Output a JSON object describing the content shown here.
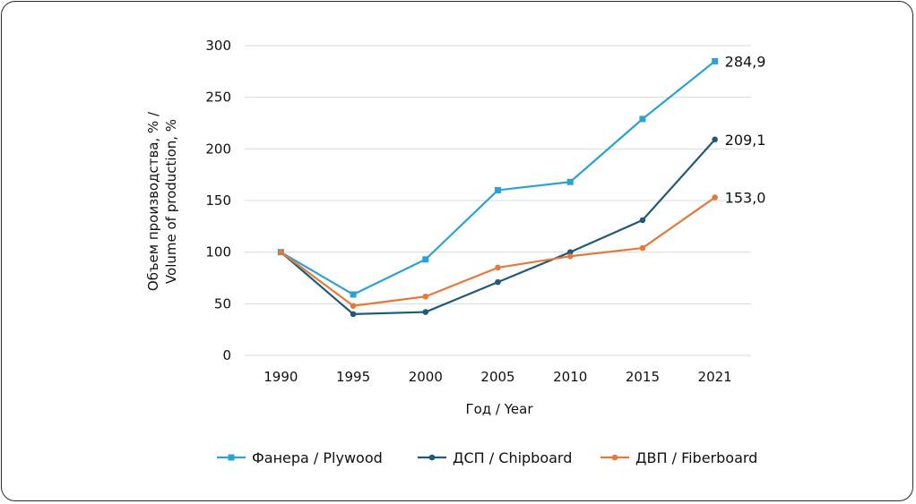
{
  "chart_data": {
    "type": "line",
    "categories": [
      "1990",
      "1995",
      "2000",
      "2005",
      "2010",
      "2015",
      "2021"
    ],
    "xlabel": "Год / Year",
    "ylabel_line1": "Объем производства, % /",
    "ylabel_line2": "Volume of production, %",
    "ylim": [
      0,
      300
    ],
    "yticks": [
      "0",
      "50",
      "100",
      "150",
      "200",
      "250",
      "300"
    ],
    "grid": true,
    "legend_position": "bottom",
    "series": [
      {
        "name": "Фанера / Plywood",
        "color": "#2aa3d4",
        "marker": "square",
        "values": [
          100,
          59,
          93,
          160,
          168,
          229,
          284.9
        ],
        "end_label": "284,9"
      },
      {
        "name": "ДСП / Chipboard",
        "color": "#1f5a78",
        "marker": "circle",
        "values": [
          100,
          40,
          42,
          71,
          100,
          131,
          209.1
        ],
        "end_label": "209,1"
      },
      {
        "name": "ДВП / Fiberboard",
        "color": "#e37a3a",
        "marker": "circle",
        "values": [
          100,
          48,
          57,
          85,
          96,
          104,
          153.0
        ],
        "end_label": "153,0"
      }
    ]
  }
}
